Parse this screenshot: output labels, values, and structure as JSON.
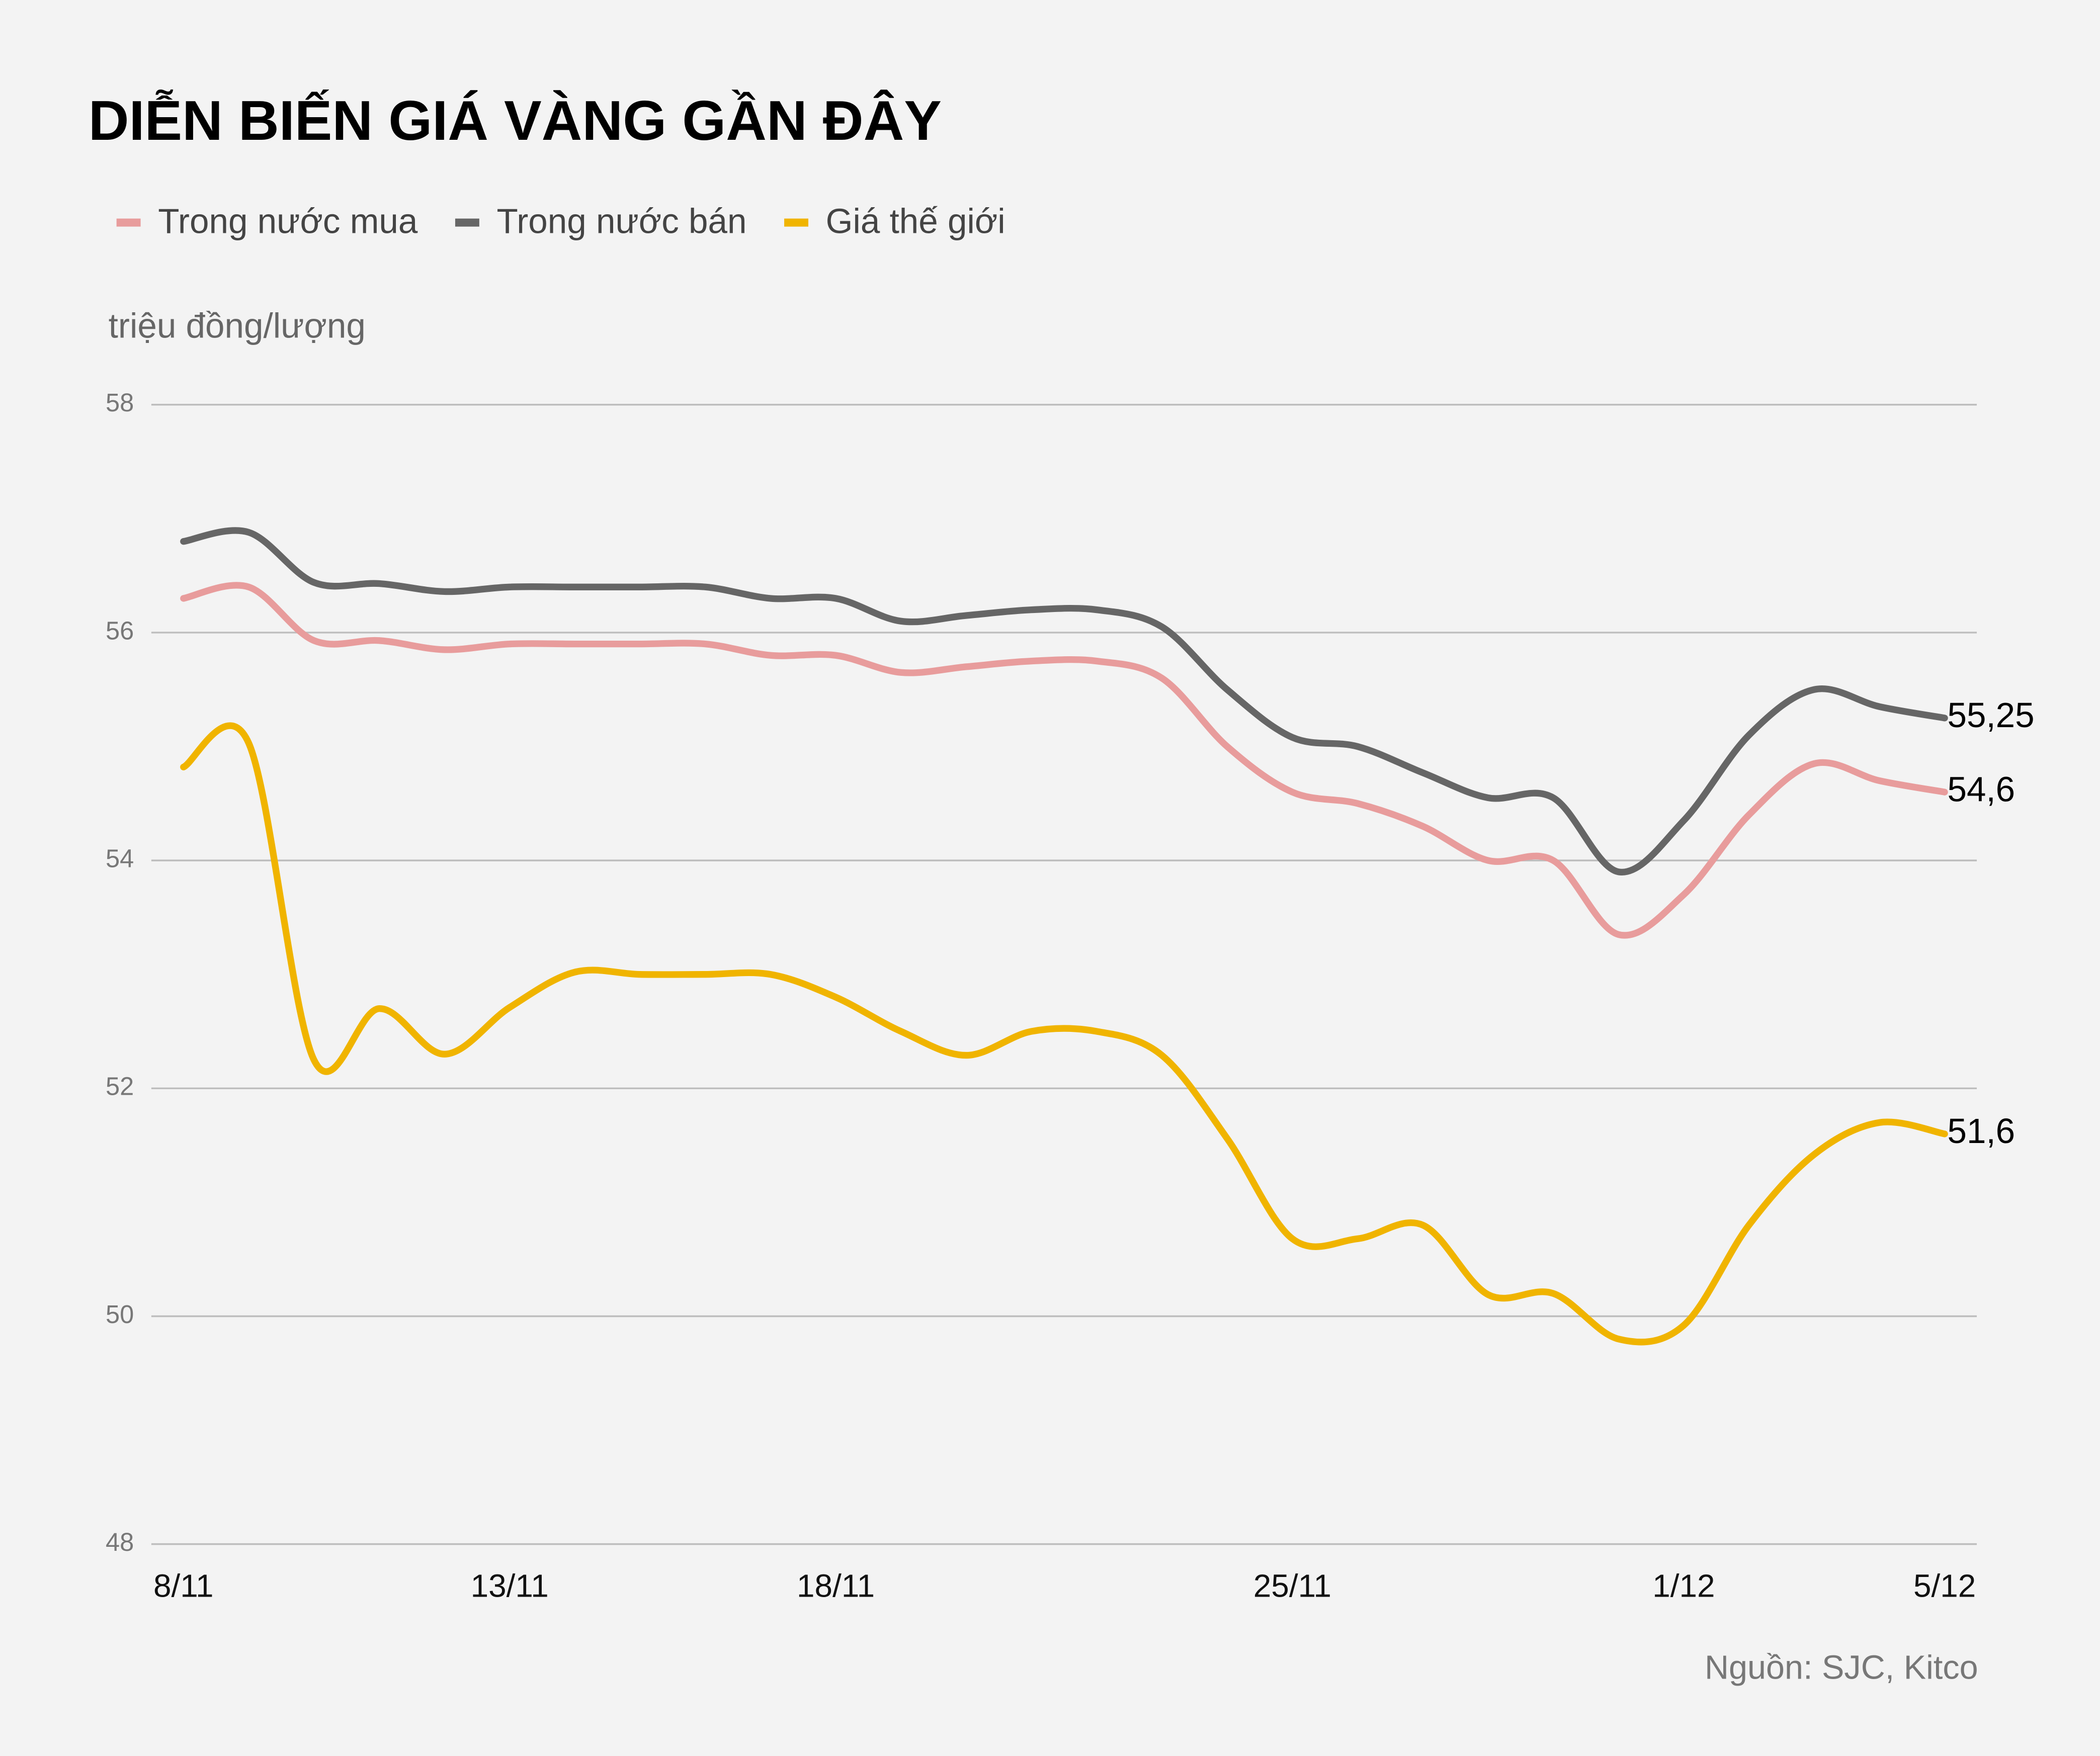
{
  "chart_data": {
    "type": "line",
    "title": "DIỄN BIẾN GIÁ VÀNG GẦN ĐÂY",
    "y_label": "triệu đồng/lượng",
    "source": "Nguồn: SJC, Kitco",
    "categories": [
      "8/11",
      null,
      null,
      null,
      null,
      "13/11",
      null,
      null,
      null,
      null,
      "18/11",
      null,
      null,
      null,
      null,
      null,
      null,
      "25/11",
      null,
      null,
      null,
      null,
      null,
      "1/12",
      null,
      null,
      null,
      "5/12"
    ],
    "ylim": [
      48,
      58
    ],
    "yticks": [
      48,
      50,
      52,
      54,
      56,
      58
    ],
    "grid": true,
    "series": [
      {
        "name": "Trong nước mua",
        "color": "#e89c9c",
        "values": [
          56.3,
          56.4,
          55.93,
          55.93,
          55.85,
          55.9,
          55.9,
          55.9,
          55.9,
          55.8,
          55.8,
          55.65,
          55.7,
          55.75,
          55.75,
          55.6,
          55.0,
          54.6,
          54.5,
          54.3,
          54.0,
          54.0,
          53.35,
          53.7,
          54.4,
          54.85,
          54.7,
          54.6
        ],
        "value_labels": [
          null,
          null,
          null,
          null,
          null,
          null,
          null,
          null,
          null,
          null,
          null,
          null,
          null,
          null,
          null,
          null,
          null,
          null,
          null,
          null,
          null,
          null,
          null,
          null,
          null,
          null,
          null,
          "54,6"
        ]
      },
      {
        "name": "Trong nước bán",
        "color": "#666666",
        "values": [
          56.8,
          56.88,
          56.44,
          56.43,
          56.36,
          56.4,
          56.4,
          56.4,
          56.4,
          56.3,
          56.3,
          56.1,
          56.15,
          56.2,
          56.2,
          56.05,
          55.5,
          55.08,
          55.0,
          54.77,
          54.55,
          54.55,
          53.9,
          54.35,
          55.1,
          55.5,
          55.35,
          55.25
        ],
        "value_labels": [
          null,
          null,
          null,
          null,
          null,
          null,
          null,
          null,
          null,
          null,
          null,
          null,
          null,
          null,
          null,
          null,
          null,
          null,
          null,
          null,
          null,
          null,
          null,
          null,
          null,
          null,
          null,
          "55,25"
        ]
      },
      {
        "name": "Giá thế giới",
        "color": "#f0b400",
        "values": [
          54.82,
          55.03,
          52.25,
          52.7,
          52.3,
          52.71,
          53.02,
          53.0,
          53.0,
          53.0,
          52.8,
          52.5,
          52.29,
          52.5,
          52.5,
          52.29,
          51.56,
          50.68,
          50.68,
          50.8,
          50.19,
          50.2,
          49.8,
          49.92,
          50.8,
          51.42,
          51.7,
          51.6
        ],
        "value_labels": [
          null,
          null,
          null,
          null,
          null,
          null,
          null,
          null,
          null,
          null,
          null,
          null,
          null,
          null,
          null,
          null,
          null,
          null,
          null,
          null,
          null,
          null,
          null,
          null,
          null,
          null,
          null,
          "51,6"
        ]
      }
    ]
  }
}
